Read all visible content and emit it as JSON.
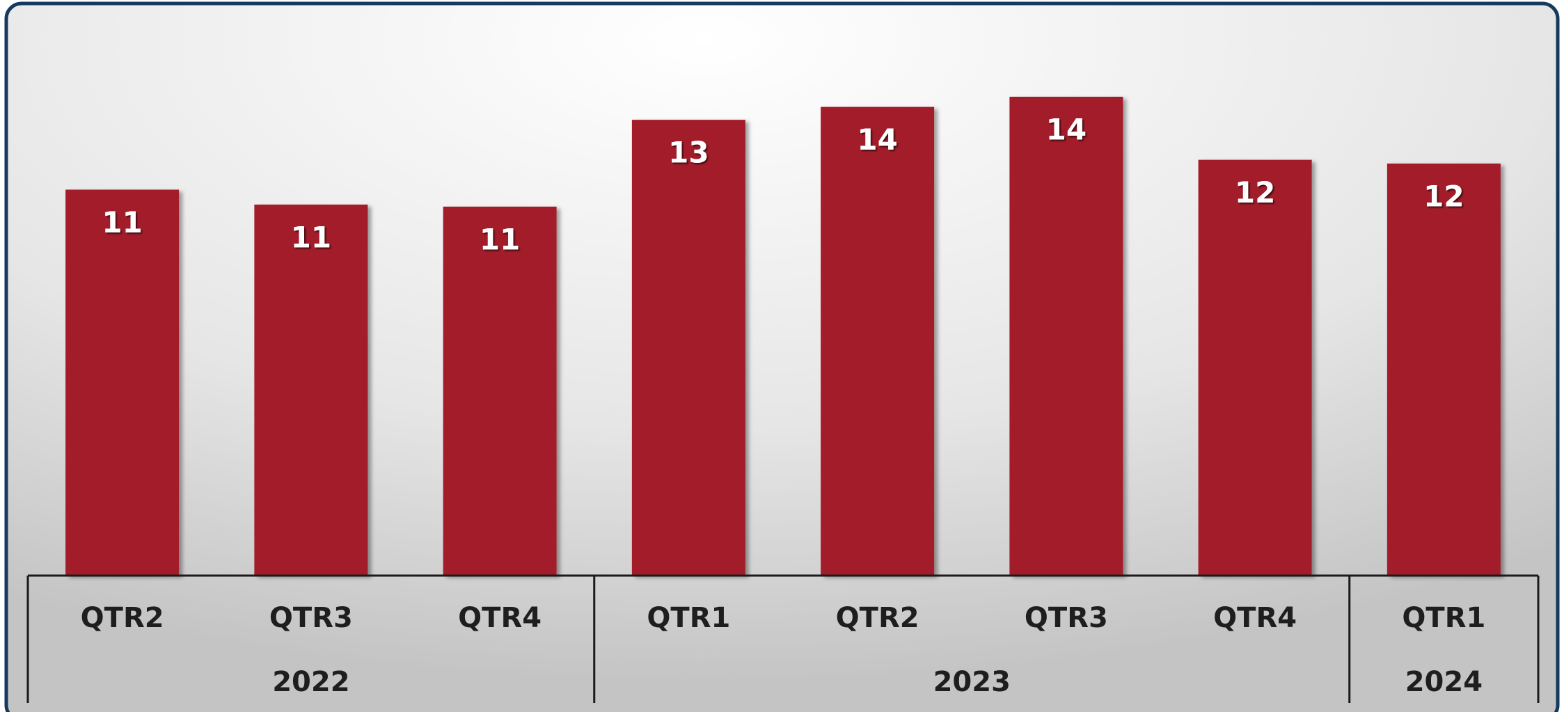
{
  "chart_data": {
    "type": "bar",
    "categories": [
      "QTR2",
      "QTR3",
      "QTR4",
      "QTR1",
      "QTR2",
      "QTR3",
      "QTR4",
      "QTR1"
    ],
    "values": [
      11.38,
      10.94,
      10.88,
      13.44,
      13.82,
      14.12,
      12.26,
      12.15
    ],
    "value_labels": [
      "11",
      "11",
      "11",
      "13",
      "14",
      "14",
      "12",
      "12"
    ],
    "groups": [
      {
        "name": "2022",
        "span": 3
      },
      {
        "name": "2023",
        "span": 4
      },
      {
        "name": "2024",
        "span": 1
      }
    ],
    "color": "#a31a2a"
  }
}
